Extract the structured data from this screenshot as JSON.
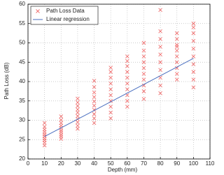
{
  "chart_data": {
    "type": "scatter",
    "xlabel": "Depth (mm)",
    "ylabel": "Path Loss (dB)",
    "xlim": [
      0,
      110
    ],
    "xticks": [
      0,
      10,
      20,
      30,
      40,
      50,
      60,
      70,
      80,
      90,
      100,
      110
    ],
    "ylim": [
      20,
      60
    ],
    "yticks": [
      20,
      25,
      30,
      35,
      40,
      45,
      50,
      55,
      60
    ],
    "grid": true,
    "legend": "upper left",
    "series": [
      {
        "name": "Path Loss Data",
        "type": "scatter",
        "color": "#f07070",
        "x": [
          10,
          10,
          10,
          10,
          10,
          10,
          10,
          10,
          10,
          10,
          20,
          20,
          20,
          20,
          20,
          20,
          20,
          20,
          20,
          20,
          30,
          30,
          30,
          30,
          30,
          30,
          30,
          30,
          30,
          30,
          40,
          40,
          40,
          40,
          40,
          40,
          40,
          40,
          40,
          40,
          50,
          50,
          50,
          50,
          50,
          50,
          50,
          50,
          50,
          50,
          60,
          60,
          60,
          60,
          60,
          60,
          60,
          60,
          60,
          60,
          70,
          70,
          70,
          70,
          70,
          70,
          70,
          70,
          70,
          70,
          80,
          80,
          80,
          80,
          80,
          80,
          80,
          80,
          80,
          80,
          90,
          90,
          90,
          90,
          90,
          90,
          90,
          90,
          90,
          90,
          100,
          100,
          100,
          100,
          100,
          100,
          100,
          100,
          100,
          100
        ],
        "values": [
          23.5,
          24.2,
          24.8,
          25.3,
          25.9,
          26.4,
          27,
          27.6,
          28.3,
          29.3,
          25.2,
          25.8,
          26.3,
          26.9,
          27.4,
          28,
          28.6,
          29.3,
          30.1,
          31,
          27.8,
          28.6,
          29.5,
          30.3,
          31.1,
          32,
          32.8,
          33.7,
          34.6,
          35.6,
          29.3,
          30.5,
          31.6,
          32.7,
          33.8,
          34.9,
          36,
          37.2,
          38.6,
          40.2,
          30.5,
          32,
          33.5,
          35,
          36.5,
          38,
          39.5,
          41,
          42.5,
          43.6,
          33.5,
          35,
          36.5,
          38,
          39.5,
          41,
          42.5,
          44,
          45.3,
          46.5,
          35.5,
          37.5,
          39,
          40.5,
          42,
          43.5,
          45,
          46.5,
          48,
          50,
          37,
          39,
          41,
          43,
          45,
          47,
          49,
          51,
          53,
          58.5,
          40.5,
          42,
          43.5,
          45,
          46.5,
          48,
          49.5,
          51,
          52.5,
          49,
          38.5,
          40.5,
          42.5,
          44.5,
          46.5,
          48.5,
          50.5,
          52.5,
          54,
          55
        ]
      },
      {
        "name": "Linear regression",
        "type": "line",
        "color": "#4a6fc0",
        "x": [
          10,
          100
        ],
        "values": [
          25.8,
          46
        ]
      }
    ]
  }
}
